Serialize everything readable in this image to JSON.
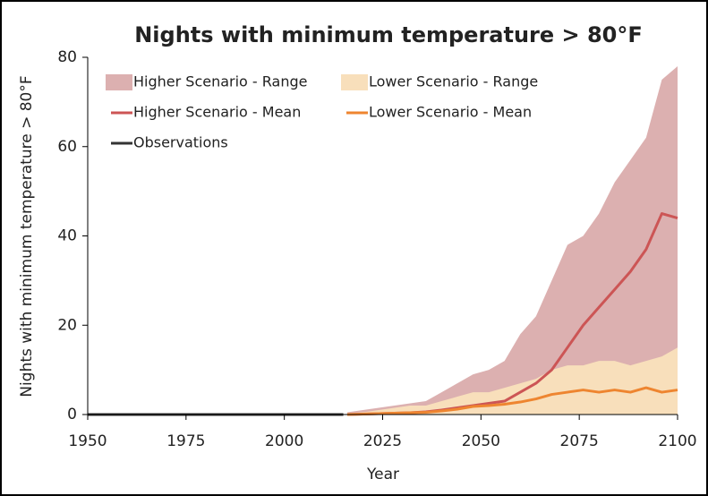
{
  "chart_data": {
    "type": "line",
    "title": "Nights with minimum temperature > 80°F",
    "xlabel": "Year",
    "ylabel": "Nights with minimum temperature > 80°F",
    "xlim": [
      1950,
      2100
    ],
    "ylim": [
      0,
      80
    ],
    "xticks": [
      1950,
      1975,
      2000,
      2025,
      2050,
      2075,
      2100
    ],
    "yticks": [
      0,
      20,
      40,
      60,
      80
    ],
    "series": [
      {
        "name": "Higher Scenario - Range",
        "kind": "range",
        "color": "#dcb0b0",
        "x": [
          2016,
          2020,
          2024,
          2028,
          2032,
          2036,
          2040,
          2044,
          2048,
          2052,
          2056,
          2060,
          2064,
          2068,
          2072,
          2076,
          2080,
          2084,
          2088,
          2092,
          2096,
          2100
        ],
        "low": [
          0,
          0,
          0,
          0,
          0,
          0,
          0,
          0,
          0,
          0,
          0,
          0,
          0.5,
          1,
          2,
          3,
          4,
          5,
          6,
          8,
          10,
          15
        ],
        "high": [
          0.5,
          1,
          1.5,
          2,
          2.5,
          3,
          5,
          7,
          9,
          10,
          12,
          18,
          22,
          30,
          38,
          40,
          45,
          52,
          57,
          62,
          75,
          78
        ]
      },
      {
        "name": "Lower Scenario - Range",
        "kind": "range",
        "color": "#f8dfbb",
        "x": [
          2016,
          2020,
          2024,
          2028,
          2032,
          2036,
          2040,
          2044,
          2048,
          2052,
          2056,
          2060,
          2064,
          2068,
          2072,
          2076,
          2080,
          2084,
          2088,
          2092,
          2096,
          2100
        ],
        "low": [
          0,
          0,
          0,
          0,
          0,
          0,
          0,
          0,
          0,
          0,
          0,
          0,
          0,
          0,
          0,
          0,
          0,
          0,
          0,
          0,
          0,
          0
        ],
        "high": [
          0.3,
          0.5,
          1,
          1.5,
          2,
          2,
          3,
          4,
          5,
          5,
          6,
          7,
          8,
          10,
          11,
          11,
          12,
          12,
          11,
          12,
          13,
          15
        ]
      },
      {
        "name": "Higher Scenario - Mean",
        "kind": "line",
        "color": "#cc5555",
        "x": [
          2016,
          2020,
          2024,
          2028,
          2032,
          2036,
          2040,
          2044,
          2048,
          2052,
          2056,
          2060,
          2064,
          2068,
          2072,
          2076,
          2080,
          2084,
          2088,
          2092,
          2096,
          2100
        ],
        "values": [
          0,
          0.1,
          0.2,
          0.3,
          0.4,
          0.6,
          1,
          1.5,
          2,
          2.5,
          3,
          5,
          7,
          10,
          15,
          20,
          24,
          28,
          32,
          37,
          45,
          44
        ]
      },
      {
        "name": "Lower Scenario - Mean",
        "kind": "line",
        "color": "#ee8530",
        "x": [
          2016,
          2020,
          2024,
          2028,
          2032,
          2036,
          2040,
          2044,
          2048,
          2052,
          2056,
          2060,
          2064,
          2068,
          2072,
          2076,
          2080,
          2084,
          2088,
          2092,
          2096,
          2100
        ],
        "values": [
          0,
          0.1,
          0.2,
          0.3,
          0.4,
          0.5,
          0.8,
          1.2,
          1.8,
          2,
          2.3,
          2.8,
          3.5,
          4.5,
          5,
          5.5,
          5,
          5.5,
          5,
          6,
          5,
          5.5
        ]
      },
      {
        "name": "Observations",
        "kind": "line",
        "color": "#333333",
        "x": [
          1950,
          1955,
          1960,
          1965,
          1970,
          1975,
          1980,
          1985,
          1990,
          1995,
          2000,
          2005,
          2010,
          2015
        ],
        "values": [
          0,
          0,
          0,
          0,
          0,
          0,
          0,
          0,
          0,
          0,
          0,
          0,
          0,
          0
        ]
      }
    ]
  }
}
